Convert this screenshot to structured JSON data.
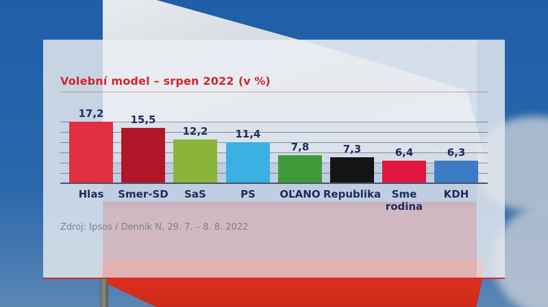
{
  "chart_data": {
    "type": "bar",
    "title": "Volební model – srpen 2022",
    "unit_label": "(v %)",
    "categories": [
      "Hlas",
      "Smer-SD",
      "SaS",
      "PS",
      "OĽANO",
      "Republika",
      "Sme rodina",
      "KDH"
    ],
    "values": [
      17.2,
      15.5,
      12.2,
      11.4,
      7.8,
      7.3,
      6.4,
      6.3
    ],
    "value_labels": [
      "17,2",
      "15,5",
      "12,2",
      "11,4",
      "7,8",
      "7,3",
      "6,4",
      "6,3"
    ],
    "colors": [
      "#e0303f",
      "#b0182a",
      "#8ab43a",
      "#3ab0e3",
      "#3f9a3a",
      "#141414",
      "#e0163e",
      "#3d7bc4"
    ],
    "xlabel": "",
    "ylabel": "",
    "ylim": [
      0,
      17.2
    ],
    "grid": true,
    "legend": "none",
    "source": "Zdroj: Ipsos / Denník N, 29. 7. – 8. 8. 2022"
  },
  "bars": [
    {
      "label": "Hlas",
      "label_line2": "",
      "value_text": "17,2"
    },
    {
      "label": "Smer-SD",
      "label_line2": "",
      "value_text": "15,5"
    },
    {
      "label": "SaS",
      "label_line2": "",
      "value_text": "12,2"
    },
    {
      "label": "PS",
      "label_line2": "",
      "value_text": "11,4"
    },
    {
      "label": "OĽANO",
      "label_line2": "",
      "value_text": "7,8"
    },
    {
      "label": "Republika",
      "label_line2": "",
      "value_text": "7,3"
    },
    {
      "label": "Sme",
      "label_line2": "rodina",
      "value_text": "6,4"
    },
    {
      "label": "KDH",
      "label_line2": "",
      "value_text": "6,3"
    }
  ],
  "header": {
    "title": "Volební model – srpen 2022",
    "unit": "(v %)"
  },
  "footer": {
    "source": "Zdroj: Ipsos / Denník N, 29. 7. – 8. 8. 2022"
  }
}
